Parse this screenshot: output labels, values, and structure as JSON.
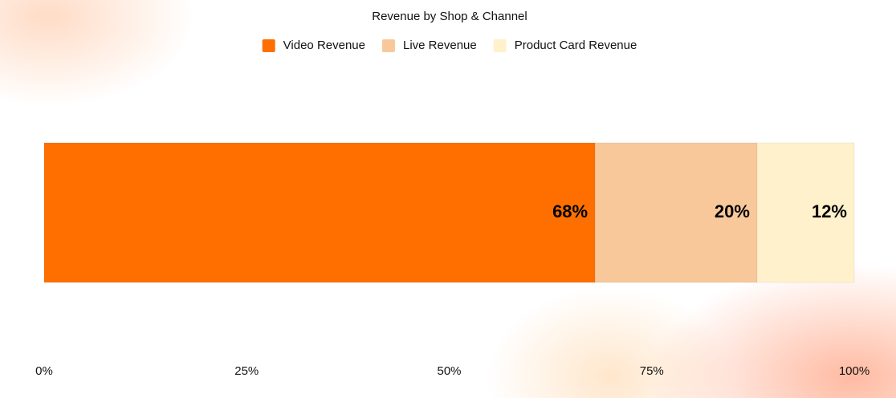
{
  "chart_data": {
    "type": "stacked-bar-horizontal",
    "title": "Revenue by Shop & Channel",
    "categories": [
      null
    ],
    "series": [
      {
        "name": "Video Revenue",
        "color": "#ff6f00",
        "values": [
          68
        ],
        "value_labels": [
          "68%"
        ]
      },
      {
        "name": "Live Revenue",
        "color": "#f8c89b",
        "values": [
          20
        ],
        "value_labels": [
          "20%"
        ]
      },
      {
        "name": "Product Card Revenue",
        "color": "#fff1cc",
        "values": [
          12
        ],
        "value_labels": [
          "12%"
        ]
      }
    ],
    "xlim": [
      0,
      100
    ],
    "xticks": [
      {
        "value": 0,
        "label": "0%"
      },
      {
        "value": 25,
        "label": "25%"
      },
      {
        "value": 50,
        "label": "50%"
      },
      {
        "value": 75,
        "label": "75%"
      },
      {
        "value": 100,
        "label": "100%"
      }
    ],
    "legend": "top",
    "grid": false
  }
}
